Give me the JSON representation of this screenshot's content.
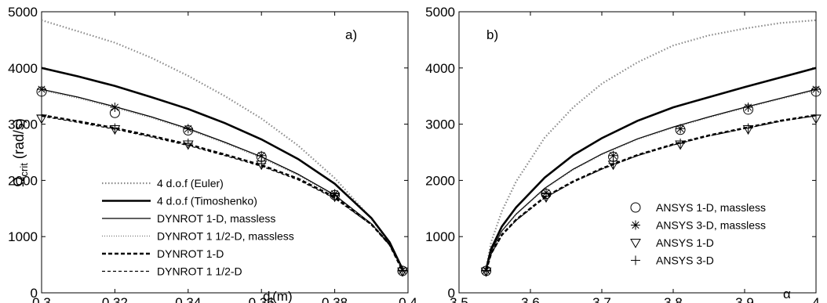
{
  "chart_data": [
    {
      "type": "line",
      "panel_label": "a)",
      "xlabel": "d",
      "xlabel_sub": "i",
      "xlabel_unit": "(m)",
      "ylabel": "Ω",
      "ylabel_sub": "crit",
      "ylabel_unit": "(rad/s)",
      "xlim": [
        0.3,
        0.4
      ],
      "ylim": [
        0,
        5000
      ],
      "xticks": [
        "0.3",
        "0.32",
        "0.34",
        "0.36",
        "0.38",
        "0.4"
      ],
      "yticks": [
        "0",
        "1000",
        "2000",
        "3000",
        "4000",
        "5000"
      ],
      "legend_position": "bottom-left",
      "series": [
        {
          "name": "4 d.o.f (Euler)",
          "style": "dotted-gray",
          "x": [
            0.3,
            0.31,
            0.32,
            0.33,
            0.34,
            0.35,
            0.36,
            0.37,
            0.38,
            0.39,
            0.395,
            0.3985
          ],
          "y": [
            4850,
            4650,
            4450,
            4180,
            3860,
            3500,
            3100,
            2620,
            2040,
            1320,
            880,
            430
          ]
        },
        {
          "name": "4 d.o.f (Timoshenko)",
          "style": "thick-solid",
          "x": [
            0.3,
            0.31,
            0.32,
            0.33,
            0.34,
            0.35,
            0.36,
            0.37,
            0.38,
            0.39,
            0.395,
            0.3985
          ],
          "y": [
            4000,
            3850,
            3680,
            3480,
            3270,
            3020,
            2730,
            2380,
            1940,
            1330,
            900,
            420
          ]
        },
        {
          "name": "DYNROT 1-D, massless",
          "style": "thin-solid",
          "x": [
            0.3,
            0.31,
            0.32,
            0.33,
            0.34,
            0.35,
            0.36,
            0.37,
            0.38,
            0.39,
            0.395,
            0.3985
          ],
          "y": [
            3620,
            3480,
            3310,
            3130,
            2920,
            2680,
            2420,
            2110,
            1740,
            1230,
            860,
            410
          ]
        },
        {
          "name": "DYNROT 1 1/2-D, massless",
          "style": "thin-dotted-gray",
          "x": [
            0.3,
            0.31,
            0.32,
            0.33,
            0.34,
            0.35,
            0.36,
            0.37,
            0.38,
            0.39,
            0.395,
            0.3985
          ],
          "y": [
            3600,
            3460,
            3290,
            3110,
            2900,
            2660,
            2400,
            2090,
            1720,
            1220,
            850,
            405
          ]
        },
        {
          "name": "DYNROT 1-D",
          "style": "thick-dashed",
          "x": [
            0.3,
            0.31,
            0.32,
            0.33,
            0.34,
            0.35,
            0.36,
            0.37,
            0.38,
            0.39,
            0.395,
            0.3985
          ],
          "y": [
            3160,
            3050,
            2930,
            2790,
            2640,
            2460,
            2270,
            2030,
            1700,
            1220,
            860,
            400
          ]
        },
        {
          "name": "DYNROT 1 1/2-D",
          "style": "thin-dashed",
          "x": [
            0.3,
            0.31,
            0.32,
            0.33,
            0.34,
            0.35,
            0.36,
            0.37,
            0.38,
            0.39,
            0.395,
            0.3985
          ],
          "y": [
            3140,
            3030,
            2910,
            2770,
            2620,
            2440,
            2250,
            2010,
            1680,
            1210,
            850,
            395
          ]
        }
      ],
      "markers": [
        {
          "name": "ANSYS 1-D, massless",
          "symbol": "circle",
          "x": [
            0.3,
            0.32,
            0.34,
            0.36,
            0.38,
            0.3985
          ],
          "y": [
            3580,
            3200,
            2890,
            2420,
            1740,
            390
          ]
        },
        {
          "name": "ANSYS 3-D, massless",
          "symbol": "star",
          "x": [
            0.3,
            0.32,
            0.34,
            0.36,
            0.38,
            0.3985
          ],
          "y": [
            3620,
            3300,
            2920,
            2440,
            1760,
            400
          ]
        },
        {
          "name": "ANSYS 1-D",
          "symbol": "triangle-down",
          "x": [
            0.3,
            0.32,
            0.34,
            0.36,
            0.38,
            0.3985
          ],
          "y": [
            3100,
            2910,
            2640,
            2280,
            1710,
            380
          ]
        },
        {
          "name": "ANSYS 3-D",
          "symbol": "plus",
          "x": [
            0.3,
            0.32,
            0.34,
            0.36,
            0.38,
            0.3985
          ],
          "y": [
            3160,
            2930,
            2660,
            2300,
            1730,
            390
          ]
        }
      ]
    },
    {
      "type": "line",
      "panel_label": "b)",
      "xlabel": "α",
      "xlim": [
        3.5,
        4.0
      ],
      "ylim": [
        0,
        5000
      ],
      "xticks": [
        "3.5",
        "3.6",
        "3.7",
        "3.8",
        "3.9",
        "4"
      ],
      "yticks": [
        "0",
        "1000",
        "2000",
        "3000",
        "4000",
        "5000"
      ],
      "legend_position": "bottom-right",
      "series": [
        {
          "name": "4 d.o.f (Euler)",
          "style": "dotted-gray",
          "x": [
            3.538,
            3.545,
            3.56,
            3.58,
            3.62,
            3.66,
            3.7,
            3.75,
            3.8,
            3.85,
            3.9,
            3.95,
            4.0
          ],
          "y": [
            430,
            900,
            1450,
            1980,
            2760,
            3300,
            3720,
            4100,
            4400,
            4580,
            4700,
            4800,
            4850
          ]
        },
        {
          "name": "4 d.o.f (Timoshenko)",
          "style": "thick-solid",
          "x": [
            3.538,
            3.545,
            3.56,
            3.58,
            3.62,
            3.66,
            3.7,
            3.75,
            3.8,
            3.85,
            3.9,
            3.95,
            4.0
          ],
          "y": [
            420,
            780,
            1180,
            1520,
            2050,
            2450,
            2750,
            3060,
            3300,
            3480,
            3660,
            3830,
            4000
          ]
        },
        {
          "name": "DYNROT 1-D, massless",
          "style": "thin-solid",
          "x": [
            3.538,
            3.545,
            3.56,
            3.58,
            3.62,
            3.66,
            3.7,
            3.75,
            3.8,
            3.85,
            3.9,
            3.95,
            4.0
          ],
          "y": [
            410,
            740,
            1100,
            1400,
            1860,
            2200,
            2470,
            2740,
            2950,
            3130,
            3300,
            3460,
            3620
          ]
        },
        {
          "name": "DYNROT 1 1/2-D, massless",
          "style": "thin-dotted-gray",
          "x": [
            3.538,
            3.545,
            3.56,
            3.58,
            3.62,
            3.66,
            3.7,
            3.75,
            3.8,
            3.85,
            3.9,
            3.95,
            4.0
          ],
          "y": [
            405,
            730,
            1090,
            1390,
            1845,
            2185,
            2455,
            2725,
            2935,
            3115,
            3285,
            3445,
            3600
          ]
        },
        {
          "name": "DYNROT 1-D",
          "style": "thick-dashed",
          "x": [
            3.538,
            3.545,
            3.56,
            3.58,
            3.62,
            3.66,
            3.7,
            3.75,
            3.8,
            3.85,
            3.9,
            3.95,
            4.0
          ],
          "y": [
            400,
            700,
            1030,
            1300,
            1700,
            1980,
            2210,
            2450,
            2640,
            2800,
            2930,
            3060,
            3160
          ]
        },
        {
          "name": "DYNROT 1 1/2-D",
          "style": "thin-dashed",
          "x": [
            3.538,
            3.545,
            3.56,
            3.58,
            3.62,
            3.66,
            3.7,
            3.75,
            3.8,
            3.85,
            3.9,
            3.95,
            4.0
          ],
          "y": [
            395,
            690,
            1020,
            1290,
            1690,
            1970,
            2200,
            2440,
            2630,
            2790,
            2920,
            3050,
            3150
          ]
        }
      ],
      "markers": [
        {
          "name": "ANSYS 1-D, massless",
          "symbol": "circle",
          "x": [
            3.538,
            3.622,
            3.716,
            3.81,
            3.905,
            4.0
          ],
          "y": [
            390,
            1760,
            2420,
            2900,
            3260,
            3580
          ]
        },
        {
          "name": "ANSYS 3-D, massless",
          "symbol": "star",
          "x": [
            3.538,
            3.622,
            3.716,
            3.81,
            3.905,
            4.0
          ],
          "y": [
            400,
            1780,
            2440,
            2920,
            3300,
            3620
          ]
        },
        {
          "name": "ANSYS 1-D",
          "symbol": "triangle-down",
          "x": [
            3.538,
            3.622,
            3.716,
            3.81,
            3.905,
            4.0
          ],
          "y": [
            380,
            1700,
            2280,
            2640,
            2910,
            3100
          ]
        },
        {
          "name": "ANSYS 3-D",
          "symbol": "plus",
          "x": [
            3.538,
            3.622,
            3.716,
            3.81,
            3.905,
            4.0
          ],
          "y": [
            390,
            1720,
            2300,
            2660,
            2930,
            3160
          ]
        }
      ]
    }
  ]
}
